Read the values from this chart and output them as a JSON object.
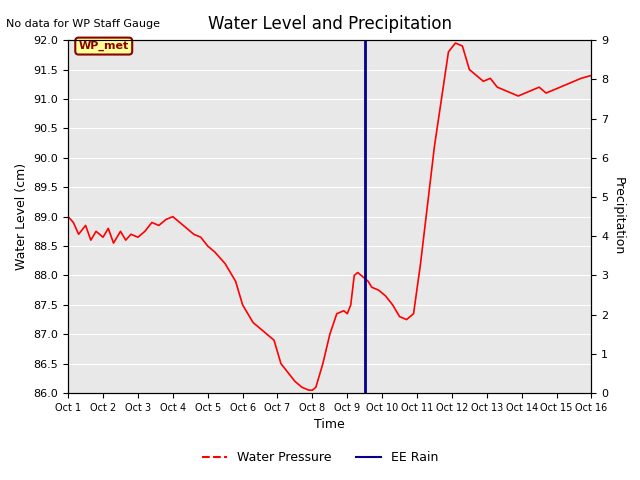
{
  "title": "Water Level and Precipitation",
  "top_left_note": "No data for WP Staff Gauge",
  "ylabel_left": "Water Level (cm)",
  "ylabel_right": "Precipitation",
  "xlabel": "Time",
  "ylim_left": [
    86.0,
    92.0
  ],
  "ylim_right": [
    0.0,
    9.0
  ],
  "yticks_left": [
    86.0,
    86.5,
    87.0,
    87.5,
    88.0,
    88.5,
    89.0,
    89.5,
    90.0,
    90.5,
    91.0,
    91.5,
    92.0
  ],
  "yticks_right": [
    0.0,
    1.0,
    2.0,
    3.0,
    4.0,
    5.0,
    6.0,
    7.0,
    8.0,
    9.0
  ],
  "xtick_labels": [
    "Oct 1",
    "Oct 2",
    "Oct 3",
    "Oct 4",
    "Oct 5",
    "Oct 6",
    "Oct 7",
    "Oct 8",
    "Oct 9",
    "Oct 10",
    "Oct 11",
    "Oct 12",
    "Oct 13",
    "Oct 14",
    "Oct 15",
    "Oct 16"
  ],
  "wp_label": "WP_met",
  "wp_label_color": "#8B0000",
  "wp_label_bg": "#FFFF99",
  "line_color": "#FF0000",
  "vline_color": "#00008B",
  "vline_x": 9.5,
  "background_color": "#E8E8E8",
  "legend_red_label": "Water Pressure",
  "legend_blue_label": "EE Rain",
  "water_x": [
    1,
    1.15,
    1.3,
    1.5,
    1.65,
    1.8,
    2.0,
    2.15,
    2.3,
    2.5,
    2.65,
    2.8,
    3.0,
    3.2,
    3.4,
    3.6,
    3.8,
    4.0,
    4.2,
    4.4,
    4.6,
    4.8,
    5.0,
    5.2,
    5.5,
    5.8,
    6.0,
    6.3,
    6.6,
    6.9,
    7.1,
    7.3,
    7.5,
    7.7,
    7.9,
    8.0,
    8.1,
    8.2,
    8.3,
    8.5,
    8.7,
    8.9,
    9.0,
    9.1,
    9.2,
    9.3,
    9.4,
    9.5,
    9.6,
    9.7,
    9.9,
    10.1,
    10.3,
    10.5,
    10.7,
    10.9,
    11.1,
    11.3,
    11.5,
    11.7,
    11.9,
    12.1,
    12.3,
    12.5,
    12.7,
    12.9,
    13.1,
    13.3,
    13.5,
    13.7,
    13.9,
    14.1,
    14.3,
    14.5,
    14.7,
    14.9,
    15.1,
    15.3,
    15.5,
    15.7,
    16.0
  ],
  "water_y": [
    89.0,
    88.9,
    88.7,
    88.85,
    88.6,
    88.75,
    88.65,
    88.8,
    88.55,
    88.75,
    88.6,
    88.7,
    88.65,
    88.75,
    88.9,
    88.85,
    88.95,
    89.0,
    88.9,
    88.8,
    88.7,
    88.65,
    88.5,
    88.4,
    88.2,
    87.9,
    87.5,
    87.2,
    87.05,
    86.9,
    86.5,
    86.35,
    86.2,
    86.1,
    86.05,
    86.05,
    86.1,
    86.3,
    86.5,
    87.0,
    87.35,
    87.4,
    87.35,
    87.5,
    88.0,
    88.05,
    88.0,
    87.95,
    87.9,
    87.8,
    87.75,
    87.65,
    87.5,
    87.3,
    87.25,
    87.35,
    88.2,
    89.2,
    90.2,
    91.0,
    91.8,
    91.95,
    91.9,
    91.5,
    91.4,
    91.3,
    91.35,
    91.2,
    91.15,
    91.1,
    91.05,
    91.1,
    91.15,
    91.2,
    91.1,
    91.15,
    91.2,
    91.25,
    91.3,
    91.35,
    91.4
  ]
}
